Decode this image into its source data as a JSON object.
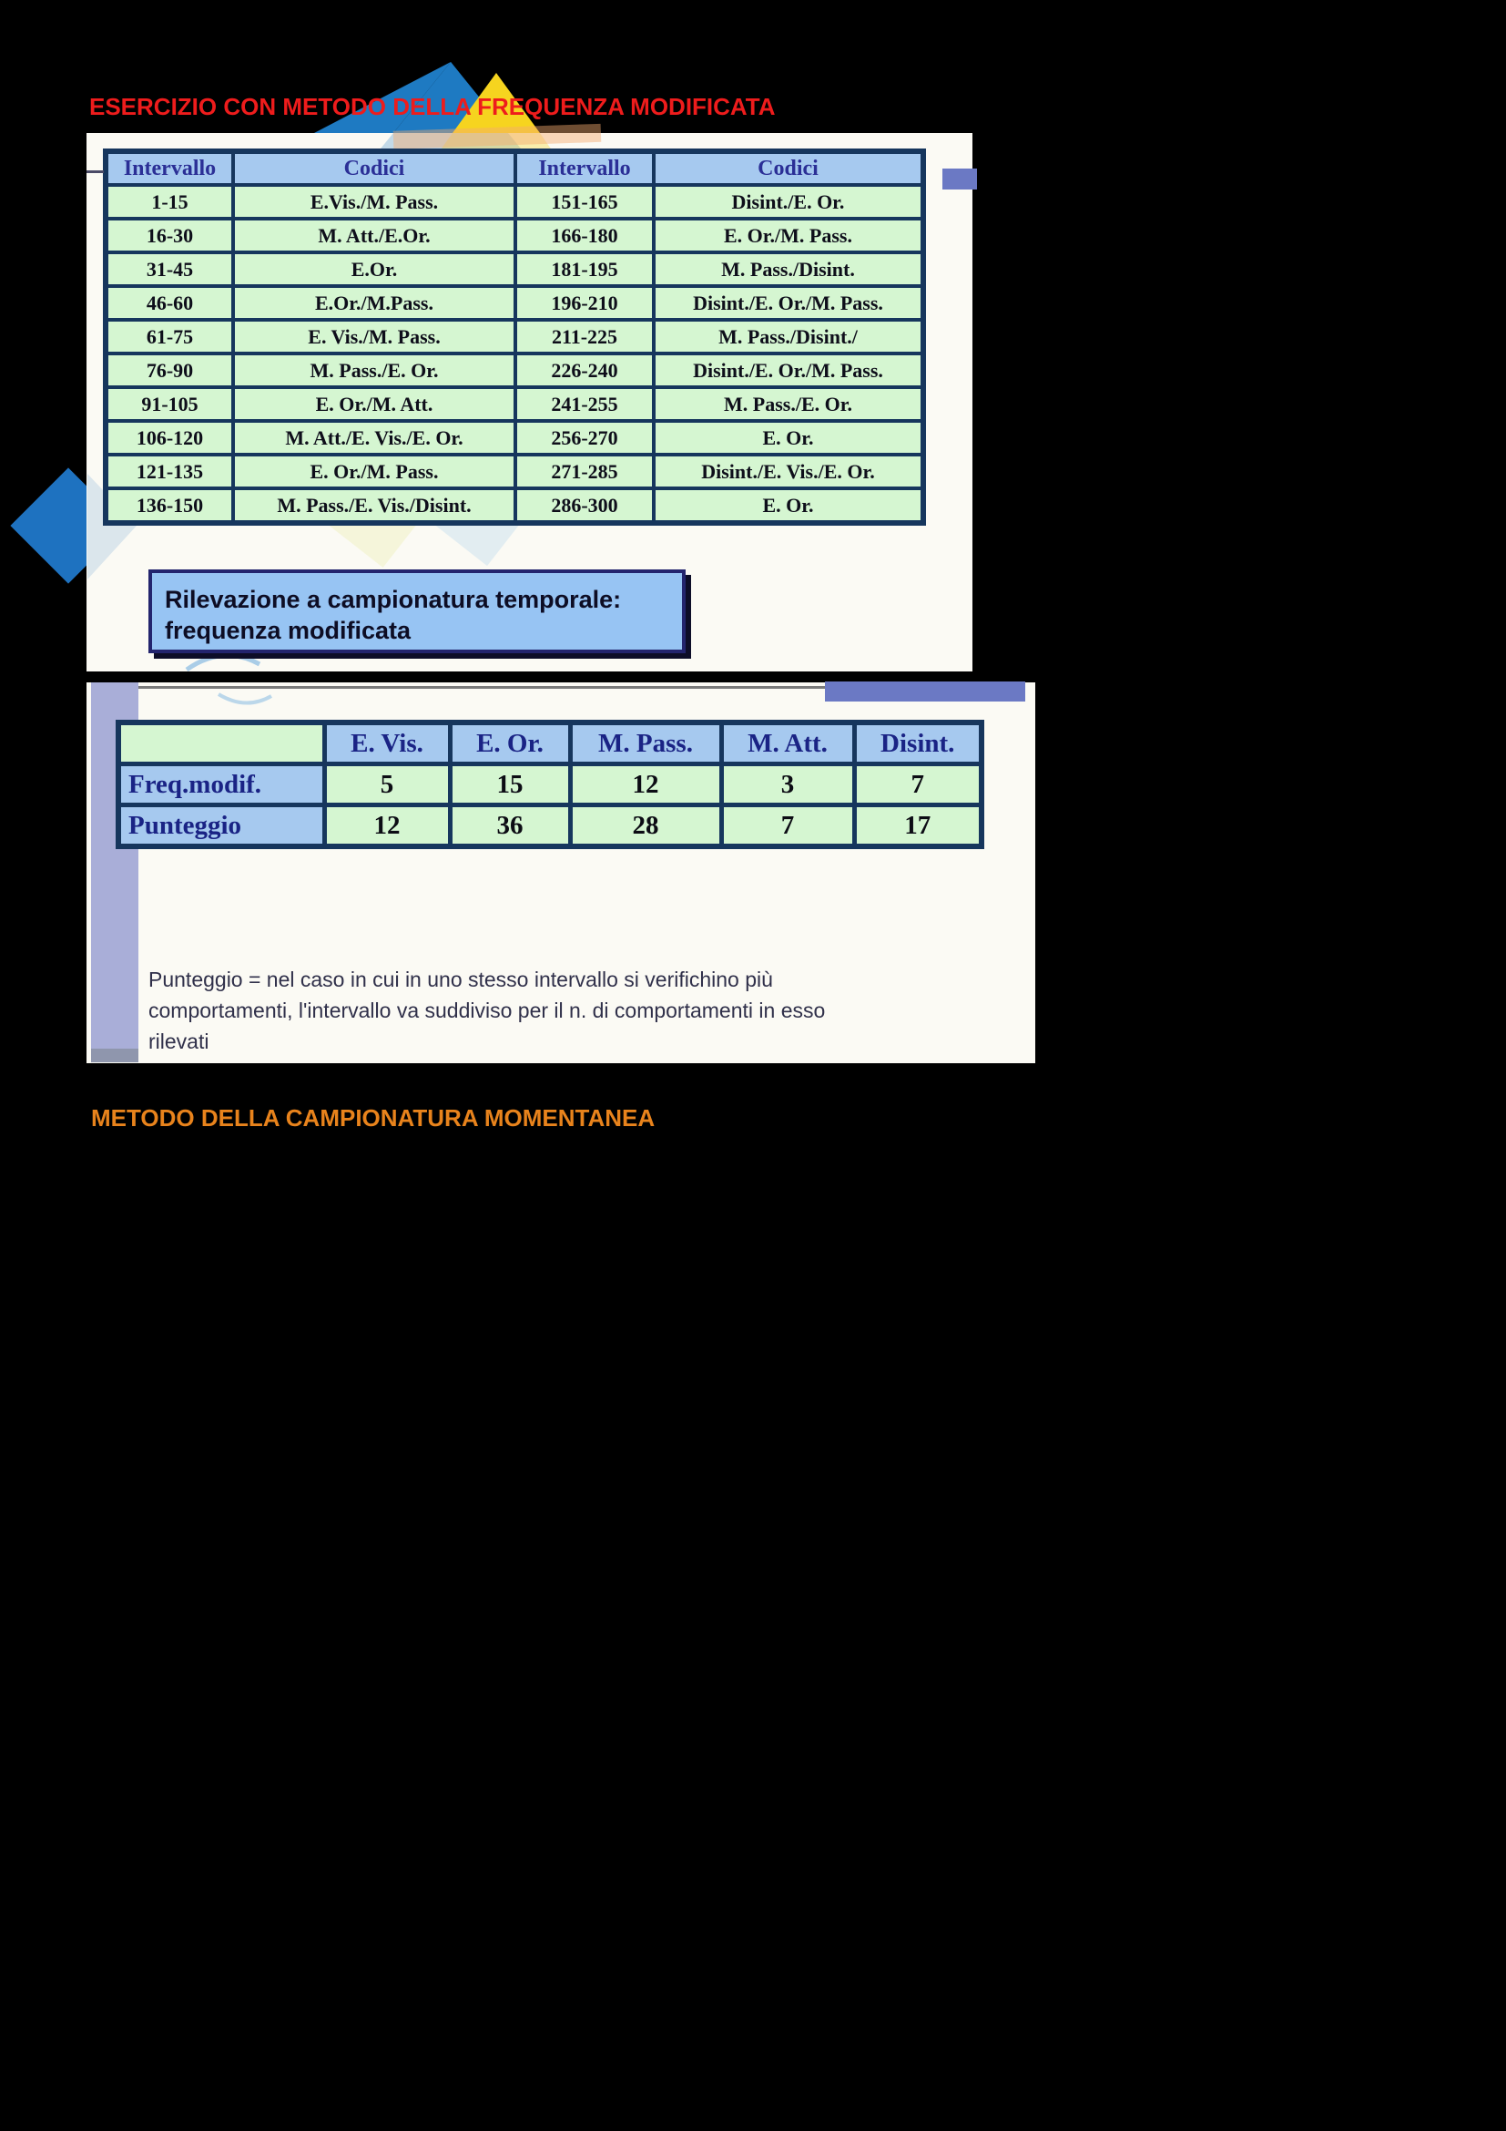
{
  "document": {
    "heading_top": "ESERCIZIO CON METODO DELLA FREQUENZA MODIFICATA",
    "heading_bottom": "METODO DELLA CAMPIONATURA MOMENTANEA"
  },
  "interval_table": {
    "headers": [
      "Intervallo",
      "Codici",
      "Intervallo",
      "Codici"
    ],
    "rows": [
      [
        "1-15",
        "E.Vis./M. Pass.",
        "151-165",
        "Disint./E. Or."
      ],
      [
        "16-30",
        "M. Att./E.Or.",
        "166-180",
        "E. Or./M. Pass."
      ],
      [
        "31-45",
        "E.Or.",
        "181-195",
        "M. Pass./Disint."
      ],
      [
        "46-60",
        "E.Or./M.Pass.",
        "196-210",
        "Disint./E. Or./M. Pass."
      ],
      [
        "61-75",
        "E. Vis./M. Pass.",
        "211-225",
        "M. Pass./Disint./"
      ],
      [
        "76-90",
        "M. Pass./E. Or.",
        "226-240",
        "Disint./E. Or./M. Pass."
      ],
      [
        "91-105",
        "E. Or./M. Att.",
        "241-255",
        "M. Pass./E. Or."
      ],
      [
        "106-120",
        "M. Att./E. Vis./E. Or.",
        "256-270",
        "E. Or."
      ],
      [
        "121-135",
        "E. Or./M. Pass.",
        "271-285",
        "Disint./E. Vis./E. Or."
      ],
      [
        "136-150",
        "M. Pass./E. Vis./Disint.",
        "286-300",
        "E. Or."
      ]
    ]
  },
  "callout": {
    "lines": [
      "Rilevazione a campionatura temporale:",
      "frequenza modificata"
    ]
  },
  "summary_table": {
    "corner": "",
    "col_headers": [
      "E. Vis.",
      "E. Or.",
      "M. Pass.",
      "M. Att.",
      "Disint."
    ],
    "rows": [
      {
        "label": "Freq.modif.",
        "values": [
          "5",
          "15",
          "12",
          "3",
          "7"
        ]
      },
      {
        "label": "Punteggio",
        "values": [
          "12",
          "36",
          "28",
          "7",
          "17"
        ]
      }
    ]
  },
  "note": {
    "lines": [
      "Punteggio = nel caso in cui in uno stesso intervallo si verifichino più",
      "comportamenti, l'intervallo va suddiviso per il n. di comportamenti in esso",
      "rilevati"
    ]
  },
  "colors": {
    "page_bg": "#000000",
    "heading_top": "#ee1c1c",
    "heading_bottom": "#e8831c",
    "table_border": "#16365d",
    "header_cell_bg": "#a6c9ef",
    "data_cell_bg": "#d5f6d1",
    "header_text": "#2b2f96",
    "callout_bg": "#97c4f3",
    "accent_bar": "#6b79c4",
    "side_strip": "#a9aed8",
    "watermark_blue": "#1e7ac2",
    "watermark_yellow": "#f6d41f"
  }
}
